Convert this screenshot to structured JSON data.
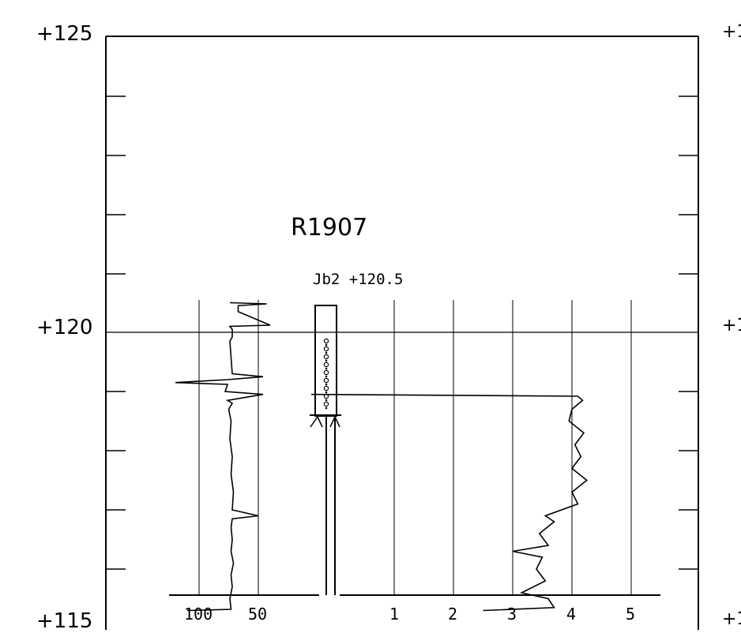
{
  "elevation_labels": {
    "top": "+125",
    "mid": "+120",
    "bottom": "+115"
  },
  "right_edge_labels": {
    "top": "+1",
    "mid": "+1",
    "bottom": "+1"
  },
  "borehole": {
    "id": "R1907",
    "note": "Jb2 +120.5"
  },
  "left_scale_ticks": [
    "100",
    "50"
  ],
  "right_scale_ticks": [
    "1",
    "2",
    "3",
    "4",
    "5"
  ],
  "chart_data": {
    "type": "line",
    "title": "",
    "y_axis": {
      "min": 115,
      "max": 125,
      "major_ticks": [
        115,
        120,
        125
      ]
    },
    "collar_elevation": 120.5,
    "series": [
      {
        "side": "left",
        "x_ticks": [
          100,
          50
        ],
        "points": [
          [
            120.5,
            74
          ],
          [
            120.48,
            43
          ],
          [
            120.45,
            67
          ],
          [
            120.35,
            67
          ],
          [
            120.12,
            40
          ],
          [
            120.1,
            74
          ],
          [
            120.05,
            72
          ],
          [
            119.92,
            72
          ],
          [
            119.85,
            74
          ],
          [
            119.3,
            72
          ],
          [
            119.25,
            46
          ],
          [
            119.2,
            76
          ],
          [
            119.15,
            120
          ],
          [
            119.12,
            76
          ],
          [
            119.0,
            78
          ],
          [
            118.95,
            46
          ],
          [
            118.85,
            76
          ],
          [
            118.8,
            72
          ],
          [
            118.7,
            75
          ],
          [
            118.5,
            73
          ],
          [
            118.2,
            74
          ],
          [
            117.9,
            72
          ],
          [
            117.6,
            73
          ],
          [
            117.3,
            71
          ],
          [
            117.0,
            72
          ],
          [
            116.9,
            50
          ],
          [
            116.85,
            72
          ],
          [
            116.7,
            73
          ],
          [
            116.5,
            72
          ],
          [
            116.3,
            73
          ],
          [
            116.1,
            71
          ],
          [
            115.9,
            73
          ],
          [
            115.7,
            72
          ],
          [
            115.5,
            74
          ],
          [
            115.32,
            73
          ],
          [
            115.3,
            110
          ]
        ]
      },
      {
        "side": "right",
        "x_ticks": [
          1,
          2,
          3,
          4,
          5
        ],
        "points": [
          [
            118.95,
            -0.4
          ],
          [
            118.92,
            4.1
          ],
          [
            118.85,
            4.18
          ],
          [
            118.7,
            4.0
          ],
          [
            118.5,
            3.95
          ],
          [
            118.3,
            4.2
          ],
          [
            118.1,
            4.05
          ],
          [
            117.9,
            4.15
          ],
          [
            117.7,
            4.0
          ],
          [
            117.5,
            4.25
          ],
          [
            117.3,
            4.0
          ],
          [
            117.1,
            4.1
          ],
          [
            116.9,
            3.55
          ],
          [
            116.8,
            3.7
          ],
          [
            116.6,
            3.45
          ],
          [
            116.4,
            3.6
          ],
          [
            116.3,
            3.0
          ],
          [
            116.2,
            3.5
          ],
          [
            116.0,
            3.4
          ],
          [
            115.8,
            3.55
          ],
          [
            115.6,
            3.15
          ],
          [
            115.5,
            3.6
          ],
          [
            115.35,
            3.7
          ],
          [
            115.3,
            2.5
          ]
        ]
      }
    ]
  }
}
